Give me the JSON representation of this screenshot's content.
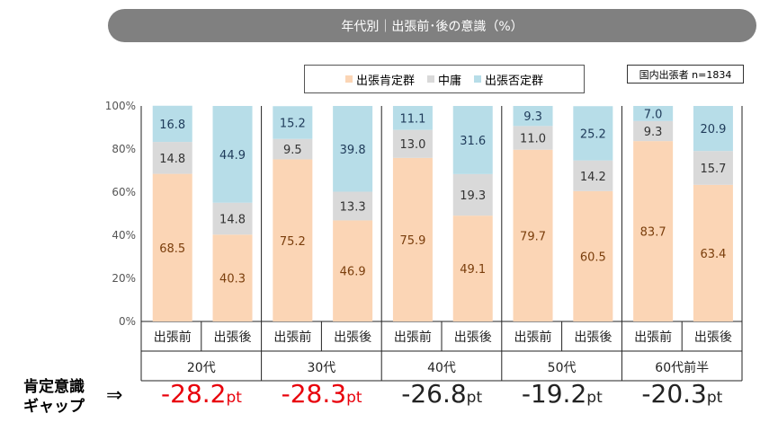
{
  "banner": {
    "title": "年代別｜出張前･後の意識（%）"
  },
  "legend": {
    "items": [
      {
        "label": "出張肯定群",
        "color": "#fbd5b5"
      },
      {
        "label": "中庸",
        "color": "#d9d9d9"
      },
      {
        "label": "出張否定群",
        "color": "#b7dde8"
      }
    ]
  },
  "sample_note": "国内出張者 n=1834",
  "gap_row": {
    "title_line1": "肯定意識",
    "title_line2": "ギャップ",
    "arrow": "⇒",
    "unit": "pt",
    "values": [
      {
        "value": "-28.2",
        "color": "#e8000b"
      },
      {
        "value": "-28.3",
        "color": "#e8000b"
      },
      {
        "value": "-26.8",
        "color": "#222222"
      },
      {
        "value": "-19.2",
        "color": "#222222"
      },
      {
        "value": "-20.3",
        "color": "#222222"
      }
    ]
  },
  "chart_data": {
    "type": "bar",
    "stacked": true,
    "ylim": [
      0,
      100
    ],
    "yticks": [
      "0%",
      "20%",
      "40%",
      "60%",
      "80%",
      "100%"
    ],
    "groups": [
      "20代",
      "30代",
      "40代",
      "50代",
      "60代前半"
    ],
    "categories": [
      "出張前",
      "出張後",
      "出張前",
      "出張後",
      "出張前",
      "出張後",
      "出張前",
      "出張後",
      "出張前",
      "出張後"
    ],
    "series": [
      {
        "name": "出張肯定群",
        "color": "#fbd5b5",
        "label_color": "#7a3e0c",
        "values": [
          68.5,
          40.3,
          75.2,
          46.9,
          75.9,
          49.1,
          79.7,
          60.5,
          83.7,
          63.4
        ]
      },
      {
        "name": "中庸",
        "color": "#d9d9d9",
        "label_color": "#333333",
        "values": [
          14.8,
          14.8,
          9.5,
          13.3,
          13.0,
          19.3,
          11.0,
          14.2,
          9.3,
          15.7
        ]
      },
      {
        "name": "出張否定群",
        "color": "#b7dde8",
        "label_color": "#1f3b5a",
        "values": [
          16.8,
          44.9,
          15.2,
          39.8,
          11.1,
          31.6,
          9.3,
          25.2,
          7.0,
          20.9
        ]
      }
    ],
    "grid": false,
    "legend_position": "top"
  }
}
